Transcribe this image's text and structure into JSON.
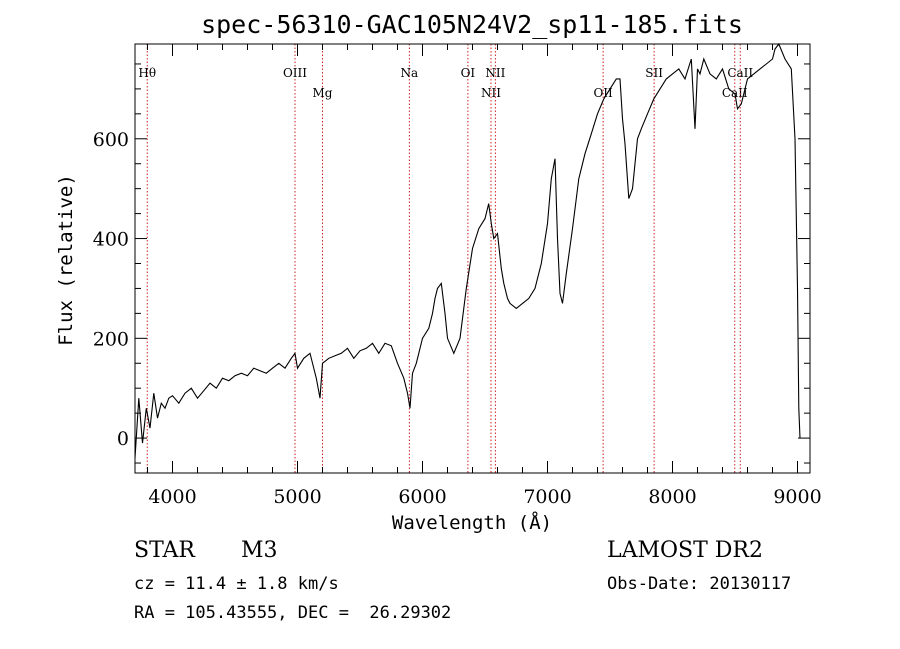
{
  "chart_data": {
    "type": "line",
    "title": "spec-56310-GAC105N24V2_sp11-185.fits",
    "xlabel": "Wavelength (Å)",
    "ylabel": "Flux (relative)",
    "xlim": [
      3700,
      9100
    ],
    "ylim": [
      -70,
      790
    ],
    "xticks": [
      4000,
      5000,
      6000,
      7000,
      8000,
      9000
    ],
    "yticks": [
      0,
      200,
      400,
      600
    ],
    "grid": false,
    "series": [
      {
        "x": [
          3700,
          3730,
          3760,
          3790,
          3820,
          3850,
          3880,
          3910,
          3940,
          3970,
          4000,
          4050,
          4100,
          4150,
          4200,
          4250,
          4300,
          4350,
          4400,
          4450,
          4500,
          4550,
          4600,
          4650,
          4700,
          4750,
          4800,
          4850,
          4900,
          4950,
          4980,
          5000,
          5050,
          5100,
          5150,
          5180,
          5200,
          5250,
          5300,
          5350,
          5400,
          5450,
          5500,
          5550,
          5600,
          5650,
          5700,
          5750,
          5800,
          5850,
          5880,
          5900,
          5920,
          5950,
          6000,
          6050,
          6080,
          6100,
          6120,
          6150,
          6180,
          6200,
          6250,
          6300,
          6350,
          6400,
          6450,
          6500,
          6530,
          6550,
          6570,
          6600,
          6630,
          6650,
          6680,
          6700,
          6750,
          6800,
          6850,
          6900,
          6950,
          7000,
          7030,
          7060,
          7080,
          7100,
          7120,
          7150,
          7200,
          7250,
          7300,
          7350,
          7400,
          7450,
          7500,
          7550,
          7580,
          7600,
          7620,
          7650,
          7680,
          7700,
          7720,
          7750,
          7800,
          7850,
          7900,
          7950,
          8000,
          8050,
          8100,
          8150,
          8180,
          8200,
          8220,
          8250,
          8300,
          8350,
          8400,
          8450,
          8500,
          8520,
          8550,
          8580,
          8600,
          8650,
          8700,
          8750,
          8800,
          8820,
          8850,
          8900,
          8950,
          8980,
          9000,
          9010,
          9020
        ],
        "y": [
          -40,
          80,
          -10,
          60,
          20,
          90,
          40,
          70,
          60,
          80,
          85,
          70,
          90,
          100,
          80,
          95,
          110,
          100,
          120,
          115,
          125,
          130,
          125,
          140,
          135,
          130,
          140,
          150,
          140,
          160,
          170,
          140,
          160,
          170,
          120,
          80,
          150,
          160,
          165,
          170,
          180,
          160,
          175,
          180,
          190,
          170,
          190,
          185,
          150,
          120,
          90,
          60,
          130,
          150,
          200,
          220,
          250,
          280,
          300,
          310,
          250,
          200,
          170,
          200,
          300,
          380,
          420,
          440,
          470,
          430,
          400,
          410,
          340,
          310,
          280,
          270,
          260,
          270,
          280,
          300,
          350,
          430,
          520,
          560,
          400,
          290,
          270,
          330,
          420,
          520,
          570,
          610,
          650,
          680,
          700,
          720,
          720,
          640,
          590,
          480,
          500,
          550,
          600,
          620,
          650,
          680,
          700,
          720,
          730,
          740,
          720,
          760,
          620,
          740,
          730,
          760,
          730,
          720,
          740,
          700,
          690,
          660,
          670,
          700,
          720,
          730,
          740,
          750,
          760,
          780,
          790,
          760,
          740,
          600,
          300,
          60,
          0
        ]
      }
    ],
    "line_markers": [
      {
        "label": "Hθ",
        "x": 3798,
        "row": 0
      },
      {
        "label": "OIII",
        "x": 4980,
        "row": 0
      },
      {
        "label": "Mg",
        "x": 5200,
        "row": 1
      },
      {
        "label": "Na",
        "x": 5895,
        "row": 0
      },
      {
        "label": "OI",
        "x": 6363,
        "row": 0
      },
      {
        "label": "NII",
        "x": 6548,
        "row": 1
      },
      {
        "label": "NII",
        "x": 6583,
        "row": 0
      },
      {
        "label": "OII",
        "x": 7445,
        "row": 1
      },
      {
        "label": "SII",
        "x": 7853,
        "row": 0
      },
      {
        "label": "CaII",
        "x": 8498,
        "row": 1
      },
      {
        "label": "CaII",
        "x": 8542,
        "row": 0
      }
    ]
  },
  "info": {
    "object_class": "STAR",
    "subclass": "M3",
    "survey": "LAMOST DR2",
    "redshift": "cz = 11.4 ± 1.8 km/s",
    "obs_date": "Obs-Date: 20130117",
    "coords": "RA = 105.43555, DEC =  26.29302"
  },
  "colors": {
    "spectrum": "#000000",
    "marker_line": "#cc2222",
    "axes": "#000000"
  }
}
